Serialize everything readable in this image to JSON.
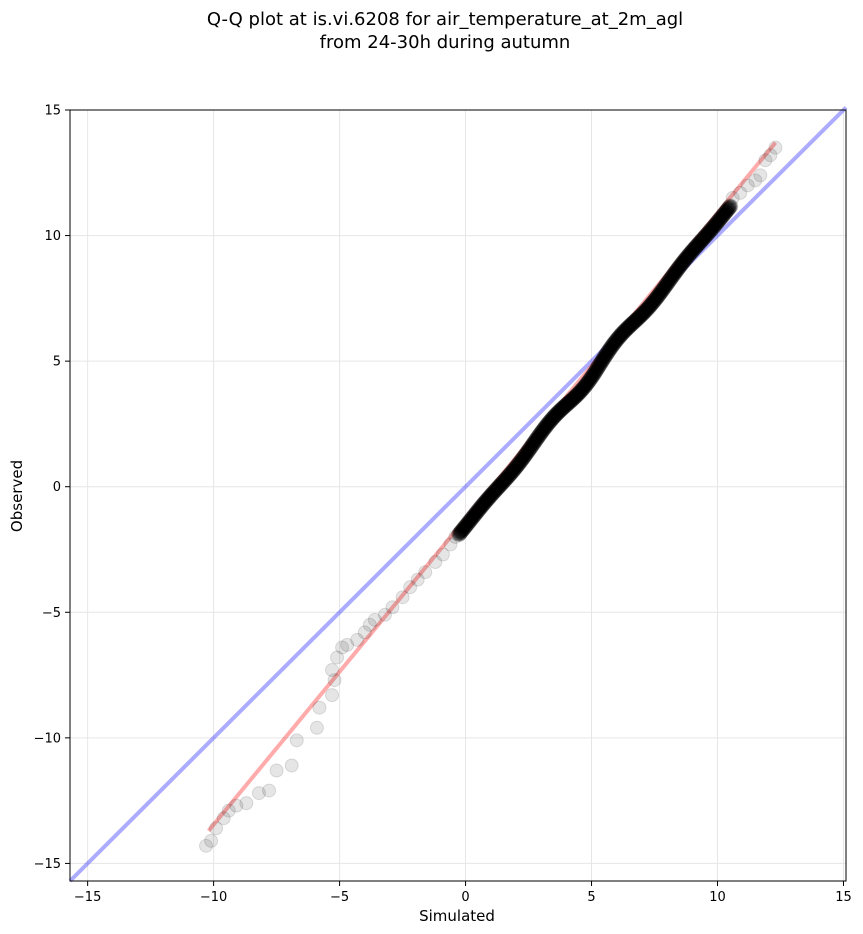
{
  "chart_data": {
    "type": "scatter",
    "title_line1": "Q-Q plot at is.vi.6208 for air_temperature_at_2m_agl",
    "title_line2": "from 24-30h during autumn",
    "xlabel": "Simulated",
    "ylabel": "Observed",
    "xlim": [
      -15.7,
      15.1
    ],
    "ylim": [
      -15.7,
      15.0
    ],
    "x_ticks": [
      -15,
      -10,
      -5,
      0,
      5,
      10,
      15
    ],
    "y_ticks": [
      -15,
      -10,
      -5,
      0,
      5,
      10,
      15
    ],
    "x_tick_labels": [
      "−15",
      "−10",
      "−5",
      "0",
      "5",
      "10",
      "15"
    ],
    "y_tick_labels": [
      "−15",
      "−10",
      "−5",
      "0",
      "5",
      "10",
      "15"
    ],
    "grid": true,
    "colors": {
      "points": "#000000",
      "fit_line": "#ff0000",
      "identity_line": "#0000ff"
    },
    "identity_line": {
      "x": [
        -15.7,
        15.1
      ],
      "y": [
        -15.7,
        15.1
      ]
    },
    "fit_line": {
      "x": [
        -10.2,
        12.3
      ],
      "y": [
        -13.7,
        13.7
      ]
    },
    "tail_points": [
      [
        -10.3,
        -14.3
      ],
      [
        -10.1,
        -14.1
      ],
      [
        -9.9,
        -13.6
      ],
      [
        -9.6,
        -13.2
      ],
      [
        -9.4,
        -12.9
      ],
      [
        -9.1,
        -12.7
      ],
      [
        -8.7,
        -12.6
      ],
      [
        -8.2,
        -12.2
      ],
      [
        -7.8,
        -12.1
      ],
      [
        -7.5,
        -11.3
      ],
      [
        -6.9,
        -11.1
      ],
      [
        -6.7,
        -10.1
      ],
      [
        -5.9,
        -9.6
      ],
      [
        -5.8,
        -8.8
      ],
      [
        -5.3,
        -8.3
      ],
      [
        -5.2,
        -7.7
      ],
      [
        -5.3,
        -7.3
      ],
      [
        -5.1,
        -6.8
      ],
      [
        -4.9,
        -6.4
      ],
      [
        -4.7,
        -6.3
      ],
      [
        -4.3,
        -6.1
      ],
      [
        -4.0,
        -5.8
      ],
      [
        -3.8,
        -5.5
      ],
      [
        -3.6,
        -5.3
      ],
      [
        -3.2,
        -5.1
      ],
      [
        -2.9,
        -4.8
      ],
      [
        -2.5,
        -4.4
      ],
      [
        -2.2,
        -4.0
      ],
      [
        -1.9,
        -3.7
      ],
      [
        -1.6,
        -3.4
      ],
      [
        -1.2,
        -3.0
      ],
      [
        -0.9,
        -2.7
      ],
      [
        -0.6,
        -2.3
      ],
      [
        -0.4,
        -2.0
      ],
      [
        -0.2,
        -1.8
      ],
      [
        10.6,
        11.5
      ],
      [
        10.9,
        11.7
      ],
      [
        11.2,
        12.0
      ],
      [
        11.5,
        12.2
      ],
      [
        11.7,
        12.4
      ],
      [
        11.9,
        13.0
      ],
      [
        12.1,
        13.2
      ],
      [
        12.3,
        13.5
      ]
    ],
    "dense_range": {
      "x": [
        -0.3,
        10.5
      ],
      "y": [
        -1.9,
        11.2
      ]
    }
  }
}
